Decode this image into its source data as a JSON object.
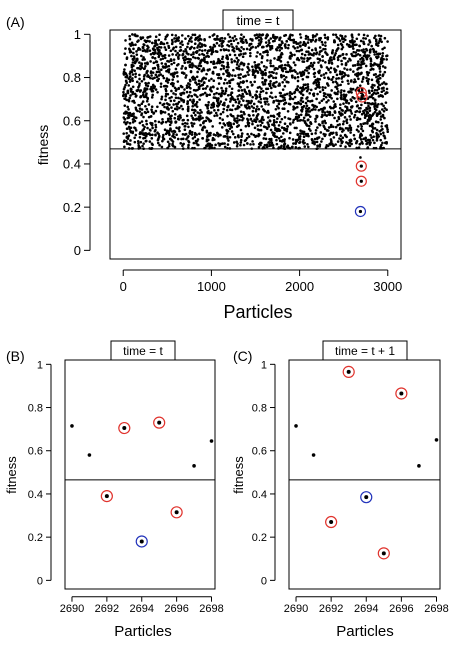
{
  "chart_data": [
    {
      "id": "A",
      "panel_label": "(A)",
      "type": "scatter",
      "title": "time = t",
      "xlabel": "Particles",
      "ylabel": "fitness",
      "xlim": [
        -150,
        3150
      ],
      "ylim": [
        -0.04,
        1.02
      ],
      "xticks": [
        0,
        1000,
        2000,
        3000
      ],
      "yticks": [
        0,
        0.2,
        0.4,
        0.6,
        0.8,
        1
      ],
      "ytick_labels": [
        "0",
        "0.2",
        "0.4",
        "0.6",
        "0.8",
        "1"
      ],
      "threshold": 0.47,
      "background_points": {
        "count": 3000,
        "x_range": [
          0,
          3000
        ],
        "y_range": [
          0.47,
          1.0
        ],
        "color": "#000000"
      },
      "extra_points": [
        {
          "x": 2690,
          "y": 0.43,
          "style": "dot"
        },
        {
          "x": 2700,
          "y": 0.39,
          "style": "red-circle"
        },
        {
          "x": 2700,
          "y": 0.32,
          "style": "red-circle"
        },
        {
          "x": 2690,
          "y": 0.18,
          "style": "blue-circle"
        },
        {
          "x": 2700,
          "y": 0.73,
          "style": "red-circle"
        },
        {
          "x": 2708,
          "y": 0.71,
          "style": "red-circle"
        }
      ]
    },
    {
      "id": "B",
      "panel_label": "(B)",
      "type": "scatter",
      "title": "time = t",
      "xlabel": "Particles",
      "ylabel": "fitness",
      "xlim": [
        2689.6,
        2698.2
      ],
      "ylim": [
        -0.04,
        1.02
      ],
      "xticks": [
        2690,
        2692,
        2694,
        2696,
        2698
      ],
      "yticks": [
        0,
        0.2,
        0.4,
        0.6,
        0.8,
        1
      ],
      "ytick_labels": [
        "0",
        "0.2",
        "0.4",
        "0.6",
        "0.8",
        "1"
      ],
      "threshold": 0.465,
      "points": [
        {
          "x": 2690,
          "y": 0.715,
          "style": "dot"
        },
        {
          "x": 2691,
          "y": 0.58,
          "style": "dot"
        },
        {
          "x": 2692,
          "y": 0.39,
          "style": "red-circle"
        },
        {
          "x": 2693,
          "y": 0.705,
          "style": "red-circle"
        },
        {
          "x": 2694,
          "y": 0.18,
          "style": "blue-circle"
        },
        {
          "x": 2695,
          "y": 0.73,
          "style": "red-circle"
        },
        {
          "x": 2696,
          "y": 0.315,
          "style": "red-circle"
        },
        {
          "x": 2697,
          "y": 0.53,
          "style": "dot"
        },
        {
          "x": 2698,
          "y": 0.645,
          "style": "dot"
        }
      ]
    },
    {
      "id": "C",
      "panel_label": "(C)",
      "type": "scatter",
      "title": "time = t + 1",
      "xlabel": "Particles",
      "ylabel": "fitness",
      "xlim": [
        2689.6,
        2698.2
      ],
      "ylim": [
        -0.04,
        1.02
      ],
      "xticks": [
        2690,
        2692,
        2694,
        2696,
        2698
      ],
      "yticks": [
        0,
        0.2,
        0.4,
        0.6,
        0.8,
        1
      ],
      "ytick_labels": [
        "0",
        "0.2",
        "0.4",
        "0.6",
        "0.8",
        "1"
      ],
      "threshold": 0.465,
      "points": [
        {
          "x": 2690,
          "y": 0.715,
          "style": "dot"
        },
        {
          "x": 2691,
          "y": 0.58,
          "style": "dot"
        },
        {
          "x": 2692,
          "y": 0.27,
          "style": "red-circle"
        },
        {
          "x": 2693,
          "y": 0.965,
          "style": "red-circle"
        },
        {
          "x": 2694,
          "y": 0.385,
          "style": "blue-circle"
        },
        {
          "x": 2695,
          "y": 0.125,
          "style": "red-circle"
        },
        {
          "x": 2696,
          "y": 0.865,
          "style": "red-circle"
        },
        {
          "x": 2697,
          "y": 0.53,
          "style": "dot"
        },
        {
          "x": 2698,
          "y": 0.65,
          "style": "dot"
        }
      ]
    }
  ],
  "colors": {
    "red": "#e0322c",
    "blue": "#2233bb",
    "black": "#000000"
  }
}
